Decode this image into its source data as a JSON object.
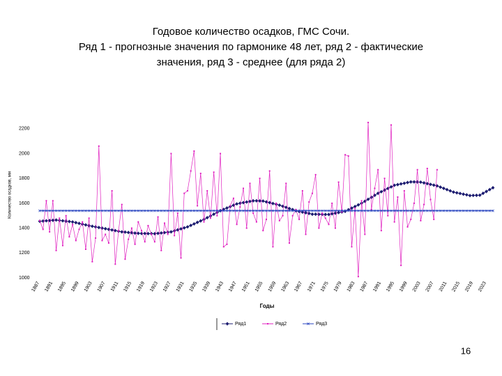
{
  "chart_data": {
    "type": "line",
    "title": [
      "Годовое количество осадков, ГМС  Сочи.",
      "Ряд 1 - прогнозные значения по гармонике 48 лет, ряд 2 - фактические",
      "значения, ряд 3 - среднее (для ряда 2)"
    ],
    "x_label": "Годы",
    "y_label": "Количество осадков, мм",
    "x": [
      1887,
      1888,
      1889,
      1890,
      1891,
      1892,
      1893,
      1894,
      1895,
      1896,
      1897,
      1898,
      1899,
      1900,
      1901,
      1902,
      1903,
      1904,
      1905,
      1906,
      1907,
      1908,
      1909,
      1910,
      1911,
      1912,
      1913,
      1914,
      1915,
      1916,
      1917,
      1918,
      1919,
      1920,
      1921,
      1922,
      1923,
      1924,
      1925,
      1926,
      1927,
      1928,
      1929,
      1930,
      1931,
      1932,
      1933,
      1934,
      1935,
      1936,
      1937,
      1938,
      1939,
      1940,
      1941,
      1942,
      1943,
      1944,
      1945,
      1946,
      1947,
      1948,
      1949,
      1950,
      1951,
      1952,
      1953,
      1954,
      1955,
      1956,
      1957,
      1958,
      1959,
      1960,
      1961,
      1962,
      1963,
      1964,
      1965,
      1966,
      1967,
      1968,
      1969,
      1970,
      1971,
      1972,
      1973,
      1974,
      1975,
      1976,
      1977,
      1978,
      1979,
      1980,
      1981,
      1982,
      1983,
      1984,
      1985,
      1986,
      1987,
      1988,
      1989,
      1990,
      1991,
      1992,
      1993,
      1994,
      1995,
      1996,
      1997,
      1998,
      1999,
      2000,
      2001,
      2002,
      2003,
      2004,
      2005,
      2006,
      2007,
      2008,
      2009,
      2010,
      2011,
      2012,
      2013,
      2014,
      2015,
      2016,
      2017,
      2018,
      2019,
      2020,
      2021,
      2022,
      2023,
      2024,
      2025
    ],
    "series": [
      {
        "name": "Ряд1",
        "color": "#1c1c70",
        "marker": "diamond",
        "values": [
          1455,
          1457,
          1459,
          1461,
          1463,
          1465,
          1462,
          1459,
          1456,
          1453,
          1450,
          1444,
          1438,
          1432,
          1426,
          1420,
          1415,
          1410,
          1405,
          1400,
          1395,
          1390,
          1385,
          1380,
          1375,
          1370,
          1368,
          1365,
          1363,
          1360,
          1358,
          1357,
          1357,
          1356,
          1356,
          1355,
          1358,
          1361,
          1364,
          1367,
          1370,
          1378,
          1386,
          1394,
          1402,
          1410,
          1422,
          1434,
          1446,
          1458,
          1470,
          1484,
          1498,
          1512,
          1526,
          1540,
          1551,
          1562,
          1573,
          1584,
          1595,
          1600,
          1605,
          1610,
          1615,
          1620,
          1620,
          1619,
          1618,
          1611,
          1605,
          1598,
          1592,
          1585,
          1576,
          1567,
          1558,
          1549,
          1540,
          1534,
          1529,
          1523,
          1518,
          1512,
          1512,
          1511,
          1511,
          1510,
          1510,
          1515,
          1520,
          1525,
          1530,
          1535,
          1548,
          1561,
          1574,
          1587,
          1600,
          1616,
          1632,
          1648,
          1664,
          1680,
          1693,
          1706,
          1719,
          1732,
          1745,
          1750,
          1756,
          1761,
          1767,
          1772,
          1772,
          1771,
          1770,
          1764,
          1758,
          1752,
          1746,
          1740,
          1730,
          1720,
          1710,
          1700,
          1690,
          1684,
          1679,
          1673,
          1668,
          1662,
          1663,
          1664,
          1665,
          1680,
          1695,
          1710,
          1725
        ]
      },
      {
        "name": "Ряд2",
        "color": "#e020c0",
        "marker": "square",
        "values": [
          1460,
          1390,
          1620,
          1370,
          1620,
          1220,
          1480,
          1260,
          1500,
          1330,
          1430,
          1300,
          1390,
          1450,
          1230,
          1480,
          1130,
          1320,
          2060,
          1300,
          1350,
          1280,
          1700,
          1110,
          1380,
          1590,
          1150,
          1310,
          1400,
          1270,
          1450,
          1380,
          1290,
          1420,
          1350,
          1290,
          1490,
          1220,
          1440,
          1350,
          2000,
          1340,
          1520,
          1160,
          1680,
          1700,
          1860,
          2020,
          1580,
          1840,
          1450,
          1700,
          1480,
          1850,
          1500,
          2000,
          1250,
          1270,
          1580,
          1640,
          1430,
          1570,
          1720,
          1400,
          1760,
          1520,
          1450,
          1800,
          1380,
          1470,
          1860,
          1250,
          1600,
          1460,
          1500,
          1760,
          1280,
          1500,
          1550,
          1470,
          1700,
          1350,
          1610,
          1680,
          1830,
          1400,
          1520,
          1480,
          1430,
          1600,
          1400,
          1770,
          1530,
          1990,
          1980,
          1250,
          1560,
          1010,
          1620,
          1350,
          2250,
          1550,
          1720,
          1870,
          1380,
          1800,
          1500,
          2230,
          1450,
          1650,
          1100,
          1700,
          1410,
          1470,
          1600,
          1870,
          1460,
          1590,
          1880,
          1630,
          1470,
          1870,
          null,
          null,
          null,
          null,
          null,
          null,
          null,
          null,
          null,
          null,
          null,
          null,
          null,
          null,
          null,
          null,
          null
        ]
      },
      {
        "name": "Ряд3",
        "color": "#2a46c0",
        "marker": "cross",
        "values": [
          1540,
          1540,
          1540,
          1540,
          1540,
          1540,
          1540,
          1540,
          1540,
          1540,
          1540,
          1540,
          1540,
          1540,
          1540,
          1540,
          1540,
          1540,
          1540,
          1540,
          1540,
          1540,
          1540,
          1540,
          1540,
          1540,
          1540,
          1540,
          1540,
          1540,
          1540,
          1540,
          1540,
          1540,
          1540,
          1540,
          1540,
          1540,
          1540,
          1540,
          1540,
          1540,
          1540,
          1540,
          1540,
          1540,
          1540,
          1540,
          1540,
          1540,
          1540,
          1540,
          1540,
          1540,
          1540,
          1540,
          1540,
          1540,
          1540,
          1540,
          1540,
          1540,
          1540,
          1540,
          1540,
          1540,
          1540,
          1540,
          1540,
          1540,
          1540,
          1540,
          1540,
          1540,
          1540,
          1540,
          1540,
          1540,
          1540,
          1540,
          1540,
          1540,
          1540,
          1540,
          1540,
          1540,
          1540,
          1540,
          1540,
          1540,
          1540,
          1540,
          1540,
          1540,
          1540,
          1540,
          1540,
          1540,
          1540,
          1540,
          1540,
          1540,
          1540,
          1540,
          1540,
          1540,
          1540,
          1540,
          1540,
          1540,
          1540,
          1540,
          1540,
          1540,
          1540,
          1540,
          1540,
          1540,
          1540,
          1540,
          1540,
          1540,
          1540,
          1540,
          1540,
          1540,
          1540,
          1540,
          1540,
          1540,
          1540,
          1540,
          1540,
          1540,
          1540,
          1540,
          1540,
          1540,
          1540
        ]
      }
    ],
    "xlim": [
      1887,
      2025
    ],
    "xticks": [
      1887,
      1891,
      1895,
      1899,
      1903,
      1907,
      1911,
      1915,
      1919,
      1923,
      1927,
      1931,
      1935,
      1939,
      1943,
      1947,
      1951,
      1955,
      1959,
      1963,
      1967,
      1971,
      1975,
      1979,
      1983,
      1987,
      1991,
      1995,
      1999,
      2003,
      2007,
      2011,
      2015,
      2019,
      2023
    ],
    "ylim": [
      1000,
      2300
    ],
    "yticks": [
      1000,
      1200,
      1400,
      1600,
      1800,
      2000,
      2200
    ],
    "grid": false,
    "legend": "bottom"
  },
  "slide": {
    "page_number": "16"
  }
}
